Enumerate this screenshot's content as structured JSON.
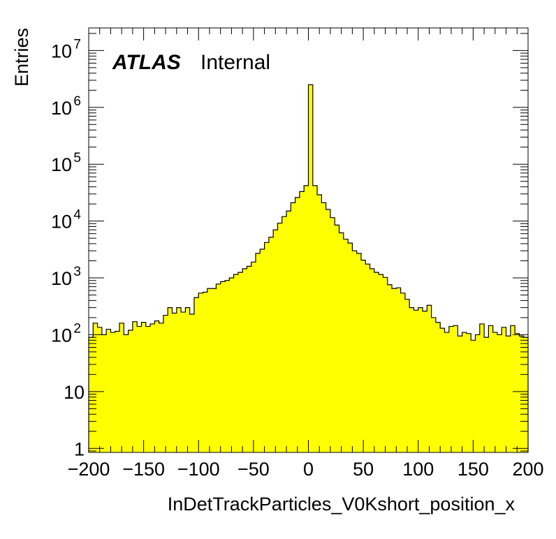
{
  "chart_data": {
    "type": "bar",
    "histogram": true,
    "ylog": true,
    "grid": false,
    "fill_color": "#ffff00",
    "line_color": "#000000",
    "xlabel": "InDetTrackParticles_V0Kshort_position_x",
    "ylabel": "Entries",
    "xlim": [
      -200,
      200
    ],
    "ylim": [
      0.85,
      25000000
    ],
    "bin_width": 4,
    "x_start": -200,
    "x_ticks": [
      {
        "value": -200,
        "label": "−200"
      },
      {
        "value": -150,
        "label": "−150"
      },
      {
        "value": -100,
        "label": "−100"
      },
      {
        "value": -50,
        "label": "−50"
      },
      {
        "value": 0,
        "label": "0"
      },
      {
        "value": 50,
        "label": "50"
      },
      {
        "value": 100,
        "label": "100"
      },
      {
        "value": 150,
        "label": "150"
      },
      {
        "value": 200,
        "label": "200"
      }
    ],
    "y_ticks": [
      {
        "value": 1,
        "base": "1",
        "exp": ""
      },
      {
        "value": 10,
        "base": "10",
        "exp": ""
      },
      {
        "value": 100,
        "base": "10",
        "exp": "2"
      },
      {
        "value": 1000,
        "base": "10",
        "exp": "3"
      },
      {
        "value": 10000,
        "base": "10",
        "exp": "4"
      },
      {
        "value": 100000,
        "base": "10",
        "exp": "5"
      },
      {
        "value": 1000000,
        "base": "10",
        "exp": "6"
      },
      {
        "value": 10000000,
        "base": "10",
        "exp": "7"
      }
    ],
    "values": [
      90,
      160,
      135,
      100,
      125,
      110,
      115,
      160,
      100,
      120,
      170,
      140,
      165,
      140,
      155,
      175,
      160,
      220,
      300,
      240,
      300,
      250,
      300,
      230,
      450,
      540,
      560,
      650,
      650,
      780,
      860,
      900,
      1000,
      1150,
      1250,
      1450,
      1600,
      1900,
      2700,
      3200,
      4200,
      5200,
      7000,
      9200,
      12000,
      15000,
      21000,
      26000,
      33000,
      42000,
      2500000,
      42000,
      29000,
      21000,
      16000,
      11500,
      8500,
      6200,
      4800,
      4100,
      3000,
      2700,
      2050,
      1750,
      1450,
      1250,
      1150,
      1020,
      760,
      650,
      670,
      540,
      420,
      300,
      270,
      300,
      260,
      330,
      200,
      165,
      130,
      110,
      140,
      145,
      95,
      110,
      105,
      80,
      100,
      155,
      90,
      145,
      110,
      100,
      135,
      95,
      145,
      105,
      95,
      90
    ]
  },
  "annotations": {
    "atlas": "ATLAS",
    "status": "Internal"
  }
}
